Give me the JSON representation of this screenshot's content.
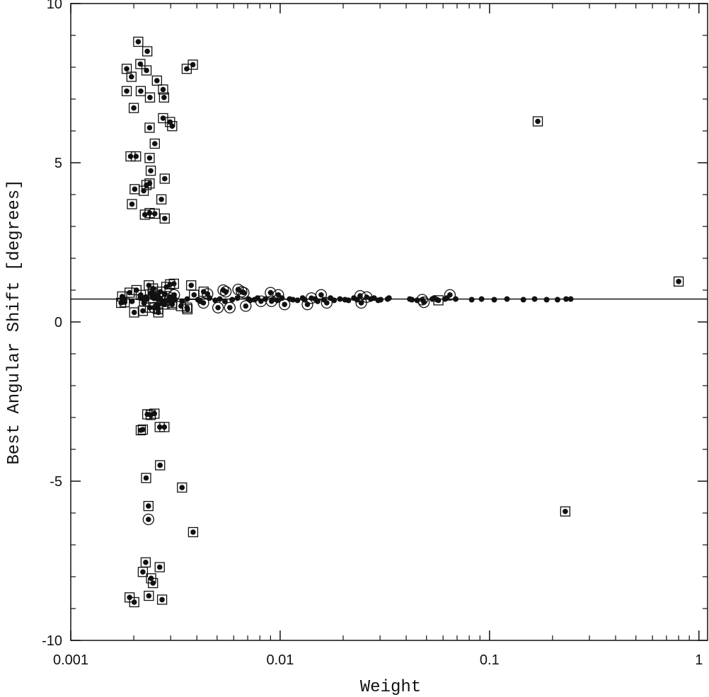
{
  "chart_data": {
    "type": "scatter",
    "title": "",
    "xlabel": "Weight",
    "ylabel": "Best Angular Shift [degrees]",
    "xscale": "log",
    "xlim": [
      0.001,
      1.1
    ],
    "ylim": [
      -10,
      10
    ],
    "x_ticks": [
      0.001,
      0.01,
      0.1,
      1
    ],
    "x_tick_labels": [
      "0.001",
      "0.01",
      "0.1",
      "1"
    ],
    "y_ticks": [
      10,
      5,
      0,
      -5,
      -10
    ],
    "y_tick_labels": [
      "10",
      "5",
      "0",
      "-5",
      "-10"
    ],
    "grid": false,
    "legend": "none",
    "reference_line": {
      "y": 0.72
    },
    "marker_styles": {
      "dot": "filled circle",
      "square": "filled circle inside open square",
      "circle": "filled circle inside open circle"
    },
    "series": [
      {
        "marker": "square",
        "x": [
          0.0021,
          0.00232,
          0.00185,
          0.00215,
          0.0023,
          0.00195,
          0.00358,
          0.00383,
          0.00258,
          0.00276,
          0.00185,
          0.00216,
          0.00239,
          0.00279,
          0.002,
          0.00276,
          0.00238,
          0.00298,
          0.00305,
          0.00252,
          0.00193,
          0.00205,
          0.00238,
          0.00241,
          0.00281,
          0.0023,
          0.00202,
          0.00223,
          0.00238,
          0.00271,
          0.00196,
          0.00226,
          0.00238,
          0.00252,
          0.00281,
          0.00176,
          0.00191,
          0.00206,
          0.00236,
          0.00247,
          0.00268,
          0.00286,
          0.00298,
          0.00311,
          0.00216,
          0.00246,
          0.00224,
          0.00248,
          0.00261,
          0.00295,
          0.00388,
          0.00431,
          0.00181,
          0.00336,
          0.00359,
          0.00174,
          0.00261,
          0.00305,
          0.00361,
          0.00376,
          0.00201,
          0.00221,
          0.00239,
          0.00262,
          0.0028,
          0.00305,
          0.00216,
          0.00221,
          0.00232,
          0.00241,
          0.00251,
          0.00266,
          0.0028,
          0.00229,
          0.00267,
          0.0034,
          0.00235,
          0.00247,
          0.00273,
          0.00242,
          0.00221,
          0.00236,
          0.00191,
          0.00201,
          0.00228,
          0.00266,
          0.00384,
          0.17,
          0.8,
          0.23,
          0.057
        ],
        "y": [
          8.8,
          8.5,
          7.95,
          8.1,
          7.9,
          7.7,
          7.95,
          8.08,
          7.58,
          7.3,
          7.25,
          7.25,
          7.05,
          7.05,
          6.72,
          6.4,
          6.1,
          6.28,
          6.15,
          5.6,
          5.2,
          5.2,
          5.15,
          4.75,
          4.5,
          4.3,
          4.17,
          4.12,
          4.35,
          3.85,
          3.7,
          3.37,
          3.42,
          3.4,
          3.25,
          0.8,
          0.92,
          1.0,
          1.15,
          1.05,
          0.95,
          1.1,
          1.18,
          1.2,
          0.85,
          0.9,
          0.65,
          0.75,
          0.82,
          0.7,
          0.85,
          0.95,
          0.62,
          0.5,
          0.45,
          0.6,
          0.4,
          0.55,
          0.4,
          1.15,
          0.3,
          0.35,
          0.45,
          0.3,
          0.55,
          0.6,
          -3.4,
          -3.38,
          -2.9,
          -2.92,
          -2.88,
          -3.3,
          -3.3,
          -4.9,
          -4.5,
          -5.2,
          -5.78,
          -8.2,
          -8.72,
          -8.05,
          -7.85,
          -8.6,
          -8.65,
          -8.8,
          -7.55,
          -7.7,
          -6.6,
          6.3,
          1.27,
          -5.95,
          0.68
        ]
      },
      {
        "marker": "circle",
        "x": [
          0.00235,
          0.0025,
          0.00282,
          0.00301,
          0.00312,
          0.0043,
          0.0045,
          0.00535,
          0.0055,
          0.0063,
          0.00655,
          0.0067,
          0.00505,
          0.00575,
          0.00685,
          0.0081,
          0.009,
          0.0098,
          0.0091,
          0.0105,
          0.0135,
          0.0141,
          0.0157,
          0.0167,
          0.0241,
          0.0259,
          0.0244,
          0.0477,
          0.0486,
          0.0647
        ],
        "y": [
          -6.2,
          0.45,
          0.65,
          0.75,
          0.85,
          0.6,
          0.88,
          1.0,
          0.95,
          1.02,
          0.95,
          0.92,
          0.45,
          0.45,
          0.5,
          0.65,
          0.92,
          0.85,
          0.65,
          0.55,
          0.55,
          0.75,
          0.85,
          0.6,
          0.82,
          0.78,
          0.6,
          0.7,
          0.62,
          0.85
        ]
      },
      {
        "marker": "dot",
        "x": [
          0.00178,
          0.00196,
          0.00215,
          0.00228,
          0.00245,
          0.00261,
          0.00291,
          0.00315,
          0.0034,
          0.0036,
          0.00405,
          0.00415,
          0.0046,
          0.0049,
          0.00515,
          0.00545,
          0.0059,
          0.00625,
          0.00705,
          0.0072,
          0.00755,
          0.0078,
          0.0085,
          0.0092,
          0.0097,
          0.0102,
          0.0111,
          0.0115,
          0.0121,
          0.0128,
          0.0131,
          0.0147,
          0.0151,
          0.0162,
          0.0174,
          0.0181,
          0.0193,
          0.0204,
          0.0212,
          0.0225,
          0.0233,
          0.0271,
          0.0281,
          0.0294,
          0.0302,
          0.0326,
          0.0331,
          0.0416,
          0.0426,
          0.0451,
          0.0533,
          0.0544,
          0.0561,
          0.0613,
          0.0625,
          0.0689,
          0.0822,
          0.0916,
          0.1053,
          0.1212,
          0.1451,
          0.1642,
          0.1874,
          0.2112,
          0.2321,
          0.2442
        ],
        "y": [
          0.7,
          0.65,
          0.75,
          0.7,
          0.8,
          0.72,
          0.68,
          0.7,
          0.65,
          0.72,
          0.7,
          0.65,
          0.75,
          0.68,
          0.72,
          0.65,
          0.7,
          0.75,
          0.72,
          0.68,
          0.7,
          0.75,
          0.72,
          0.7,
          0.68,
          0.75,
          0.72,
          0.7,
          0.68,
          0.75,
          0.7,
          0.72,
          0.65,
          0.7,
          0.75,
          0.68,
          0.72,
          0.7,
          0.68,
          0.75,
          0.7,
          0.72,
          0.75,
          0.68,
          0.7,
          0.72,
          0.75,
          0.72,
          0.7,
          0.68,
          0.72,
          0.75,
          0.7,
          0.72,
          0.75,
          0.72,
          0.7,
          0.72,
          0.7,
          0.72,
          0.7,
          0.72,
          0.7,
          0.7,
          0.72,
          0.72
        ]
      },
      {
        "marker": "dot",
        "x": [
          0.00215,
          0.00228,
          0.00242,
          0.00253,
          0.00266,
          0.00281,
          0.00297,
          0.00302,
          0.0031,
          0.00224,
          0.00258,
          0.00271
        ],
        "y": [
          0.82,
          0.78,
          0.9,
          0.85,
          0.72,
          0.88,
          0.78,
          0.65,
          0.82,
          0.6,
          0.55,
          0.58
        ]
      }
    ]
  }
}
